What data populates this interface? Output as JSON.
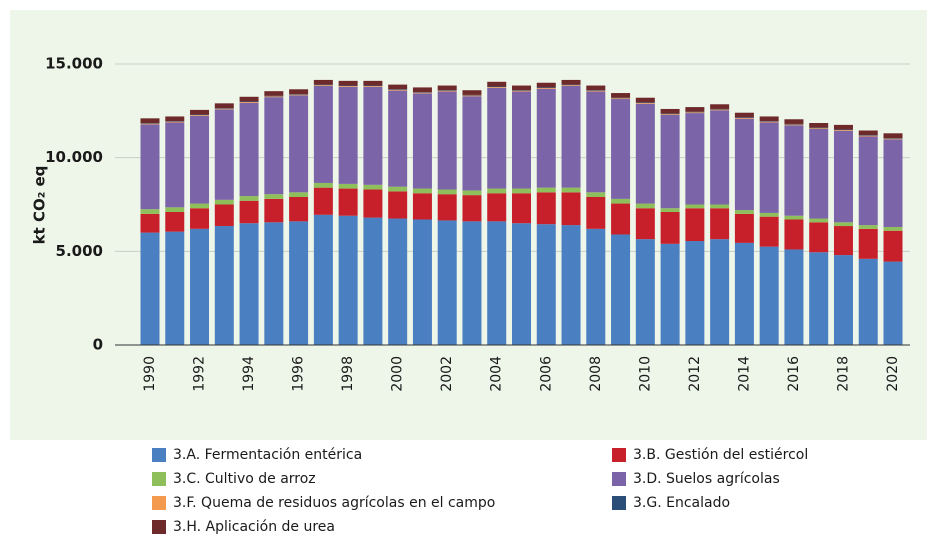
{
  "chart_data": {
    "type": "stacked_bar",
    "ylabel": "kt CO₂ eq",
    "categories": [
      "1990",
      null,
      "1992",
      null,
      "1994",
      null,
      "1996",
      null,
      "1998",
      null,
      "2000",
      null,
      "2002",
      null,
      "2004",
      null,
      "2006",
      null,
      "2008",
      null,
      "2010",
      null,
      "2012",
      null,
      "2014",
      null,
      "2016",
      null,
      "2018",
      null,
      "2020"
    ],
    "ylim": [
      0,
      15000
    ],
    "yticks": [
      {
        "value": 0,
        "label": "0"
      },
      {
        "value": 5000,
        "label": "5.000"
      },
      {
        "value": 10000,
        "label": "10.000"
      },
      {
        "value": 15000,
        "label": "15.000"
      }
    ],
    "grid": true,
    "series": [
      {
        "name": "3.A. Fermentación entérica",
        "color": "#4a7fc1",
        "values": [
          6000,
          6050,
          6200,
          6350,
          6500,
          6550,
          6600,
          6950,
          6900,
          6800,
          6750,
          6700,
          6650,
          6600,
          6600,
          6500,
          6450,
          6400,
          6200,
          5900,
          5650,
          5400,
          5550,
          5650,
          5450,
          5250,
          5100,
          4950,
          4800,
          4600,
          4450
        ]
      },
      {
        "name": "3.B. Gestión del estiércol",
        "color": "#c8202b",
        "values": [
          1000,
          1050,
          1100,
          1150,
          1200,
          1250,
          1300,
          1450,
          1450,
          1500,
          1450,
          1400,
          1400,
          1400,
          1500,
          1600,
          1700,
          1750,
          1700,
          1650,
          1650,
          1700,
          1750,
          1650,
          1550,
          1600,
          1600,
          1600,
          1550,
          1600,
          1650
        ]
      },
      {
        "name": "3.C. Cultivo de arroz",
        "color": "#8fbf5a",
        "values": [
          250,
          250,
          250,
          250,
          250,
          250,
          250,
          250,
          250,
          250,
          250,
          250,
          250,
          250,
          250,
          250,
          250,
          250,
          250,
          250,
          250,
          200,
          200,
          200,
          200,
          200,
          200,
          200,
          200,
          200,
          200
        ]
      },
      {
        "name": "3.D. Suelos agrícolas",
        "color": "#7b64a8",
        "values": [
          4530,
          4530,
          4680,
          4830,
          4980,
          5180,
          5180,
          5180,
          5180,
          5230,
          5130,
          5080,
          5230,
          5030,
          5380,
          5180,
          5280,
          5430,
          5380,
          5330,
          5330,
          4980,
          4880,
          5030,
          4880,
          4830,
          4830,
          4780,
          4880,
          4730,
          4680
        ]
      },
      {
        "name": "3.F. Quema de residuos agrícolas en el campo",
        "color": "#f39a4f",
        "values": [
          40,
          40,
          40,
          40,
          40,
          40,
          40,
          40,
          40,
          40,
          40,
          40,
          40,
          40,
          40,
          40,
          40,
          40,
          40,
          40,
          40,
          40,
          40,
          40,
          40,
          40,
          40,
          40,
          40,
          40,
          40
        ]
      },
      {
        "name": "3.G. Encalado",
        "color": "#2a4e78",
        "values": [
          30,
          30,
          30,
          30,
          30,
          30,
          30,
          30,
          30,
          30,
          30,
          30,
          30,
          30,
          30,
          30,
          30,
          30,
          30,
          30,
          30,
          30,
          30,
          30,
          30,
          30,
          30,
          30,
          30,
          30,
          30
        ]
      },
      {
        "name": "3.H. Aplicación de urea",
        "color": "#6e2a2a",
        "values": [
          250,
          250,
          250,
          250,
          250,
          250,
          250,
          250,
          250,
          250,
          250,
          250,
          250,
          250,
          250,
          250,
          250,
          250,
          250,
          250,
          250,
          250,
          250,
          250,
          250,
          250,
          250,
          250,
          250,
          250,
          250
        ]
      }
    ]
  }
}
